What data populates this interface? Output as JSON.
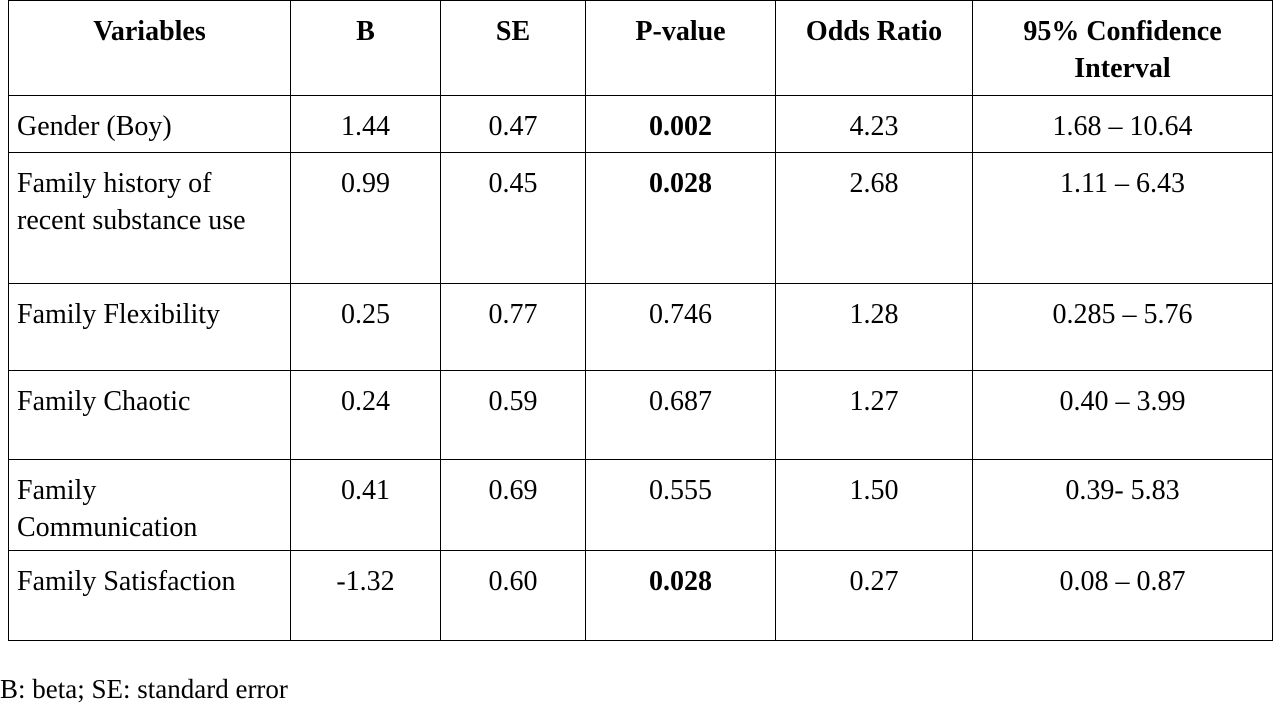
{
  "table": {
    "headers": [
      "Variables",
      "B",
      "SE",
      "P-value",
      "Odds Ratio",
      "95% Confidence Interval"
    ],
    "rows": [
      [
        "Gender (Boy)",
        "1.44",
        "0.47",
        "0.002",
        "4.23",
        "1.68 – 10.64"
      ],
      [
        "Family history of recent substance use",
        "0.99",
        "0.45",
        "0.028",
        "2.68",
        "1.11 – 6.43"
      ],
      [
        "Family Flexibility",
        "0.25",
        "0.77",
        "0.746",
        "1.28",
        "0.285 – 5.76"
      ],
      [
        "Family Chaotic",
        "0.24",
        "0.59",
        "0.687",
        "1.27",
        "0.40 – 3.99"
      ],
      [
        "Family Communication",
        "0.41",
        "0.69",
        "0.555",
        "1.50",
        "0.39- 5.83"
      ],
      [
        "Family Satisfaction",
        "-1.32",
        "0.60",
        "0.028",
        "0.27",
        "0.08 – 0.87"
      ]
    ]
  },
  "footnote": "B: beta; SE: standard error"
}
